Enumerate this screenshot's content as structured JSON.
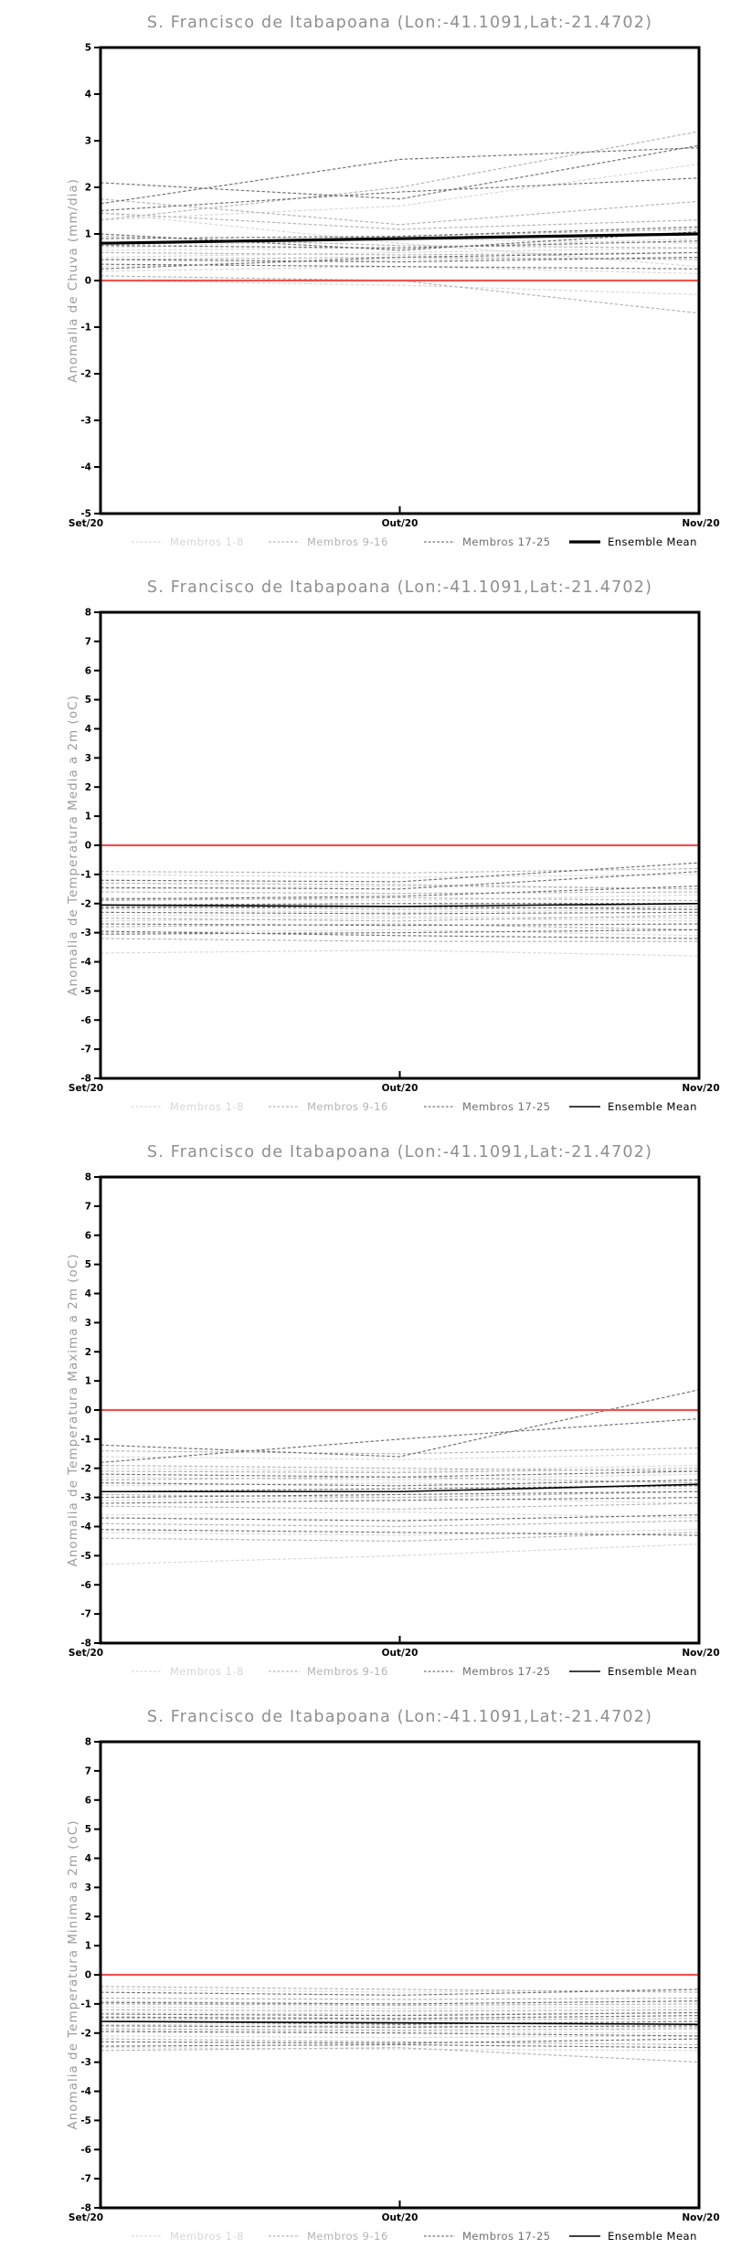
{
  "page": {
    "background": "#ffffff"
  },
  "colors": {
    "title": "#8e8e8e",
    "ylabel": "#9c9c9c",
    "axis": "#000000",
    "tick_label": "#000000",
    "zero_line": "#ef5350",
    "mean": "#000000",
    "member_groups": [
      "#d7d7d7",
      "#b3b3b3",
      "#6f6f6f"
    ]
  },
  "legend": {
    "items": [
      {
        "label": "Membros 1-8",
        "style": "dashed",
        "group": 0
      },
      {
        "label": "Membros 9-16",
        "style": "dashed",
        "group": 1
      },
      {
        "label": "Membros 17-25",
        "style": "dashed",
        "group": 2
      },
      {
        "label": "Ensemble Mean",
        "style": "solid",
        "group": -1
      }
    ]
  },
  "chart_data": [
    {
      "type": "line",
      "title": "S. Francisco de Itabapoana (Lon:-41.1091,Lat:-21.4702)",
      "xlabel": "",
      "ylabel": "Anomalia de Chuva (mm/dia)",
      "ylim": [
        -5,
        5
      ],
      "ytick_step": 1,
      "categories": [
        "Set/20",
        "Out/20",
        "Nov/20"
      ],
      "grid": false,
      "legend_position": "bottom",
      "zero_reference": [
        0,
        0,
        0
      ],
      "ensemble_mean": [
        0.8,
        0.9,
        1.0
      ],
      "mean_line_width": 3.2,
      "members": {
        "m1_8": [
          [
            1.3,
            1.6,
            2.5
          ],
          [
            0.7,
            0.9,
            0.8
          ],
          [
            0.5,
            0.6,
            0.7
          ],
          [
            1.45,
            0.8,
            0.3
          ],
          [
            0.2,
            0.3,
            0.15
          ],
          [
            0.0,
            -0.1,
            -0.3
          ],
          [
            0.65,
            0.7,
            0.9
          ],
          [
            0.3,
            0.45,
            0.5
          ]
        ],
        "m9_16": [
          [
            1.75,
            1.2,
            1.7
          ],
          [
            1.3,
            2.0,
            3.2
          ],
          [
            0.6,
            0.55,
            0.6
          ],
          [
            0.95,
            0.75,
            0.7
          ],
          [
            0.45,
            0.5,
            0.45
          ],
          [
            0.1,
            0.0,
            -0.7
          ],
          [
            0.75,
            0.95,
            1.1
          ],
          [
            1.45,
            1.1,
            1.3
          ]
        ],
        "m17_25": [
          [
            2.1,
            1.75,
            2.9
          ],
          [
            1.65,
            2.6,
            2.85
          ],
          [
            1.5,
            1.9,
            2.2
          ],
          [
            0.9,
            0.95,
            1.15
          ],
          [
            0.75,
            0.7,
            0.85
          ],
          [
            0.45,
            0.4,
            0.5
          ],
          [
            0.25,
            0.5,
            0.6
          ],
          [
            1.0,
            0.65,
            1.05
          ],
          [
            0.35,
            0.3,
            0.25
          ]
        ]
      }
    },
    {
      "type": "line",
      "title": "S. Francisco de Itabapoana (Lon:-41.1091,Lat:-21.4702)",
      "xlabel": "",
      "ylabel": "Anomalia de Temperatura Media a 2m (oC)",
      "ylim": [
        -8,
        8
      ],
      "ytick_step": 1,
      "categories": [
        "Set/20",
        "Out/20",
        "Nov/20"
      ],
      "grid": false,
      "legend_position": "bottom",
      "zero_reference": [
        0,
        0,
        0
      ],
      "ensemble_mean": [
        -2.05,
        -2.1,
        -2.0
      ],
      "mean_line_width": 1.6,
      "members": {
        "m1_8": [
          [
            -1.0,
            -1.1,
            -1.0
          ],
          [
            -1.5,
            -1.4,
            -1.5
          ],
          [
            -2.2,
            -2.3,
            -2.2
          ],
          [
            -2.6,
            -2.5,
            -2.6
          ],
          [
            -3.0,
            -2.9,
            -3.1
          ],
          [
            -3.7,
            -3.6,
            -3.8
          ],
          [
            -1.8,
            -1.9,
            -1.7
          ],
          [
            -2.4,
            -2.45,
            -2.5
          ]
        ],
        "m9_16": [
          [
            -0.9,
            -0.95,
            -0.8
          ],
          [
            -1.3,
            -1.35,
            -1.5
          ],
          [
            -1.9,
            -1.8,
            -1.9
          ],
          [
            -2.1,
            -2.2,
            -2.1
          ],
          [
            -2.5,
            -2.6,
            -2.4
          ],
          [
            -2.8,
            -2.7,
            -2.9
          ],
          [
            -3.2,
            -3.3,
            -3.3
          ],
          [
            -1.6,
            -1.65,
            -1.6
          ]
        ],
        "m17_25": [
          [
            -1.2,
            -1.25,
            -0.6
          ],
          [
            -1.45,
            -1.5,
            -0.9
          ],
          [
            -1.85,
            -1.75,
            -1.4
          ],
          [
            -2.05,
            -2.0,
            -2.0
          ],
          [
            -2.3,
            -2.35,
            -2.3
          ],
          [
            -2.7,
            -2.75,
            -2.7
          ],
          [
            -2.95,
            -3.1,
            -3.2
          ],
          [
            -3.05,
            -3.0,
            -2.9
          ],
          [
            -2.15,
            -2.1,
            -2.2
          ]
        ]
      }
    },
    {
      "type": "line",
      "title": "S. Francisco de Itabapoana (Lon:-41.1091,Lat:-21.4702)",
      "xlabel": "",
      "ylabel": "Anomalia de Temperatura Maxima a 2m (oC)",
      "ylim": [
        -8,
        8
      ],
      "ytick_step": 1,
      "categories": [
        "Set/20",
        "Out/20",
        "Nov/20"
      ],
      "grid": false,
      "legend_position": "bottom",
      "zero_reference": [
        0,
        0,
        0
      ],
      "ensemble_mean": [
        -2.8,
        -2.8,
        -2.55
      ],
      "mean_line_width": 1.6,
      "members": {
        "m1_8": [
          [
            -1.6,
            -1.7,
            -1.5
          ],
          [
            -2.0,
            -2.1,
            -1.9
          ],
          [
            -2.6,
            -2.5,
            -2.7
          ],
          [
            -3.1,
            -3.0,
            -3.2
          ],
          [
            -3.6,
            -3.5,
            -3.7
          ],
          [
            -4.2,
            -4.3,
            -4.1
          ],
          [
            -5.3,
            -5.0,
            -4.6
          ],
          [
            -2.3,
            -2.4,
            -2.2
          ]
        ],
        "m9_16": [
          [
            -1.4,
            -1.5,
            -1.3
          ],
          [
            -1.9,
            -2.0,
            -2.1
          ],
          [
            -2.4,
            -2.3,
            -2.5
          ],
          [
            -2.9,
            -3.0,
            -2.8
          ],
          [
            -3.3,
            -3.4,
            -3.2
          ],
          [
            -3.9,
            -4.0,
            -3.8
          ],
          [
            -4.4,
            -4.5,
            -4.2
          ],
          [
            -2.1,
            -2.15,
            -2.0
          ]
        ],
        "m17_25": [
          [
            -1.2,
            -1.6,
            0.7
          ],
          [
            -1.8,
            -1.0,
            -0.3
          ],
          [
            -2.2,
            -2.3,
            -2.1
          ],
          [
            -2.8,
            -2.7,
            -2.6
          ],
          [
            -3.2,
            -3.1,
            -3.0
          ],
          [
            -3.7,
            -3.8,
            -3.6
          ],
          [
            -4.1,
            -4.2,
            -4.3
          ],
          [
            -2.5,
            -2.6,
            -2.4
          ],
          [
            -3.0,
            -2.9,
            -2.8
          ]
        ]
      }
    },
    {
      "type": "line",
      "title": "S. Francisco de Itabapoana (Lon:-41.1091,Lat:-21.4702)",
      "xlabel": "",
      "ylabel": "Anomalia de Temperatura Minima a 2m (oC)",
      "ylim": [
        -8,
        8
      ],
      "ytick_step": 1,
      "categories": [
        "Set/20",
        "Out/20",
        "Nov/20"
      ],
      "grid": false,
      "legend_position": "bottom",
      "zero_reference": [
        0,
        0,
        0
      ],
      "ensemble_mean": [
        -1.6,
        -1.65,
        -1.7
      ],
      "mean_line_width": 1.6,
      "members": {
        "m1_8": [
          [
            -0.5,
            -0.6,
            -0.5
          ],
          [
            -0.9,
            -1.0,
            -0.9
          ],
          [
            -1.3,
            -1.35,
            -1.3
          ],
          [
            -1.7,
            -1.75,
            -1.8
          ],
          [
            -2.1,
            -2.15,
            -2.1
          ],
          [
            -2.5,
            -2.55,
            -2.6
          ],
          [
            -1.1,
            -1.15,
            -1.1
          ],
          [
            -1.9,
            -1.95,
            -2.0
          ]
        ],
        "m9_16": [
          [
            -0.4,
            -0.5,
            -0.6
          ],
          [
            -0.8,
            -0.85,
            -0.8
          ],
          [
            -1.2,
            -1.25,
            -1.2
          ],
          [
            -1.5,
            -1.55,
            -1.5
          ],
          [
            -1.85,
            -1.9,
            -1.85
          ],
          [
            -2.2,
            -2.3,
            -2.4
          ],
          [
            -2.6,
            -2.5,
            -3.0
          ],
          [
            -1.0,
            -1.05,
            -1.0
          ]
        ],
        "m17_25": [
          [
            -0.6,
            -0.7,
            -0.5
          ],
          [
            -0.95,
            -1.0,
            -0.9
          ],
          [
            -1.35,
            -1.4,
            -1.3
          ],
          [
            -1.6,
            -1.7,
            -1.6
          ],
          [
            -1.95,
            -2.0,
            -2.1
          ],
          [
            -2.3,
            -2.35,
            -2.2
          ],
          [
            -2.45,
            -2.4,
            -2.5
          ],
          [
            -1.45,
            -1.5,
            -1.4
          ],
          [
            -1.75,
            -1.8,
            -1.75
          ]
        ]
      }
    }
  ]
}
